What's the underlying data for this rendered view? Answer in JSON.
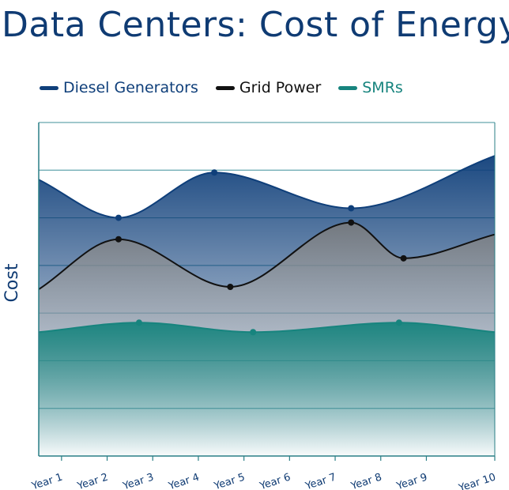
{
  "chart_data": {
    "type": "area",
    "title": "Data Centers: Cost of Energy",
    "xlabel": "",
    "ylabel": "Cost",
    "categories": [
      "Year 1",
      "Year 2",
      "Year 3",
      "Year 4",
      "Year 5",
      "Year 6",
      "Year 7",
      "Year 8",
      "Year 9",
      "Year 10"
    ],
    "ylim": [
      0,
      7
    ],
    "grid": true,
    "legend_position": "top-left",
    "series": [
      {
        "name": "Diesel Generators",
        "color": "#0f3f7a",
        "x": [
          0,
          1.75,
          3.85,
          6.85,
          10
        ],
        "y": [
          5.8,
          5.0,
          5.95,
          5.2,
          6.3
        ]
      },
      {
        "name": "Grid Power",
        "color": "#111111",
        "x": [
          0,
          1.75,
          4.2,
          6.85,
          8.0,
          10
        ],
        "y": [
          3.5,
          4.55,
          3.55,
          4.9,
          4.15,
          4.65
        ]
      },
      {
        "name": "SMRs",
        "color": "#17847e",
        "x": [
          0,
          2.2,
          4.7,
          7.9,
          10
        ],
        "y": [
          2.6,
          2.8,
          2.6,
          2.8,
          2.6
        ]
      }
    ]
  }
}
